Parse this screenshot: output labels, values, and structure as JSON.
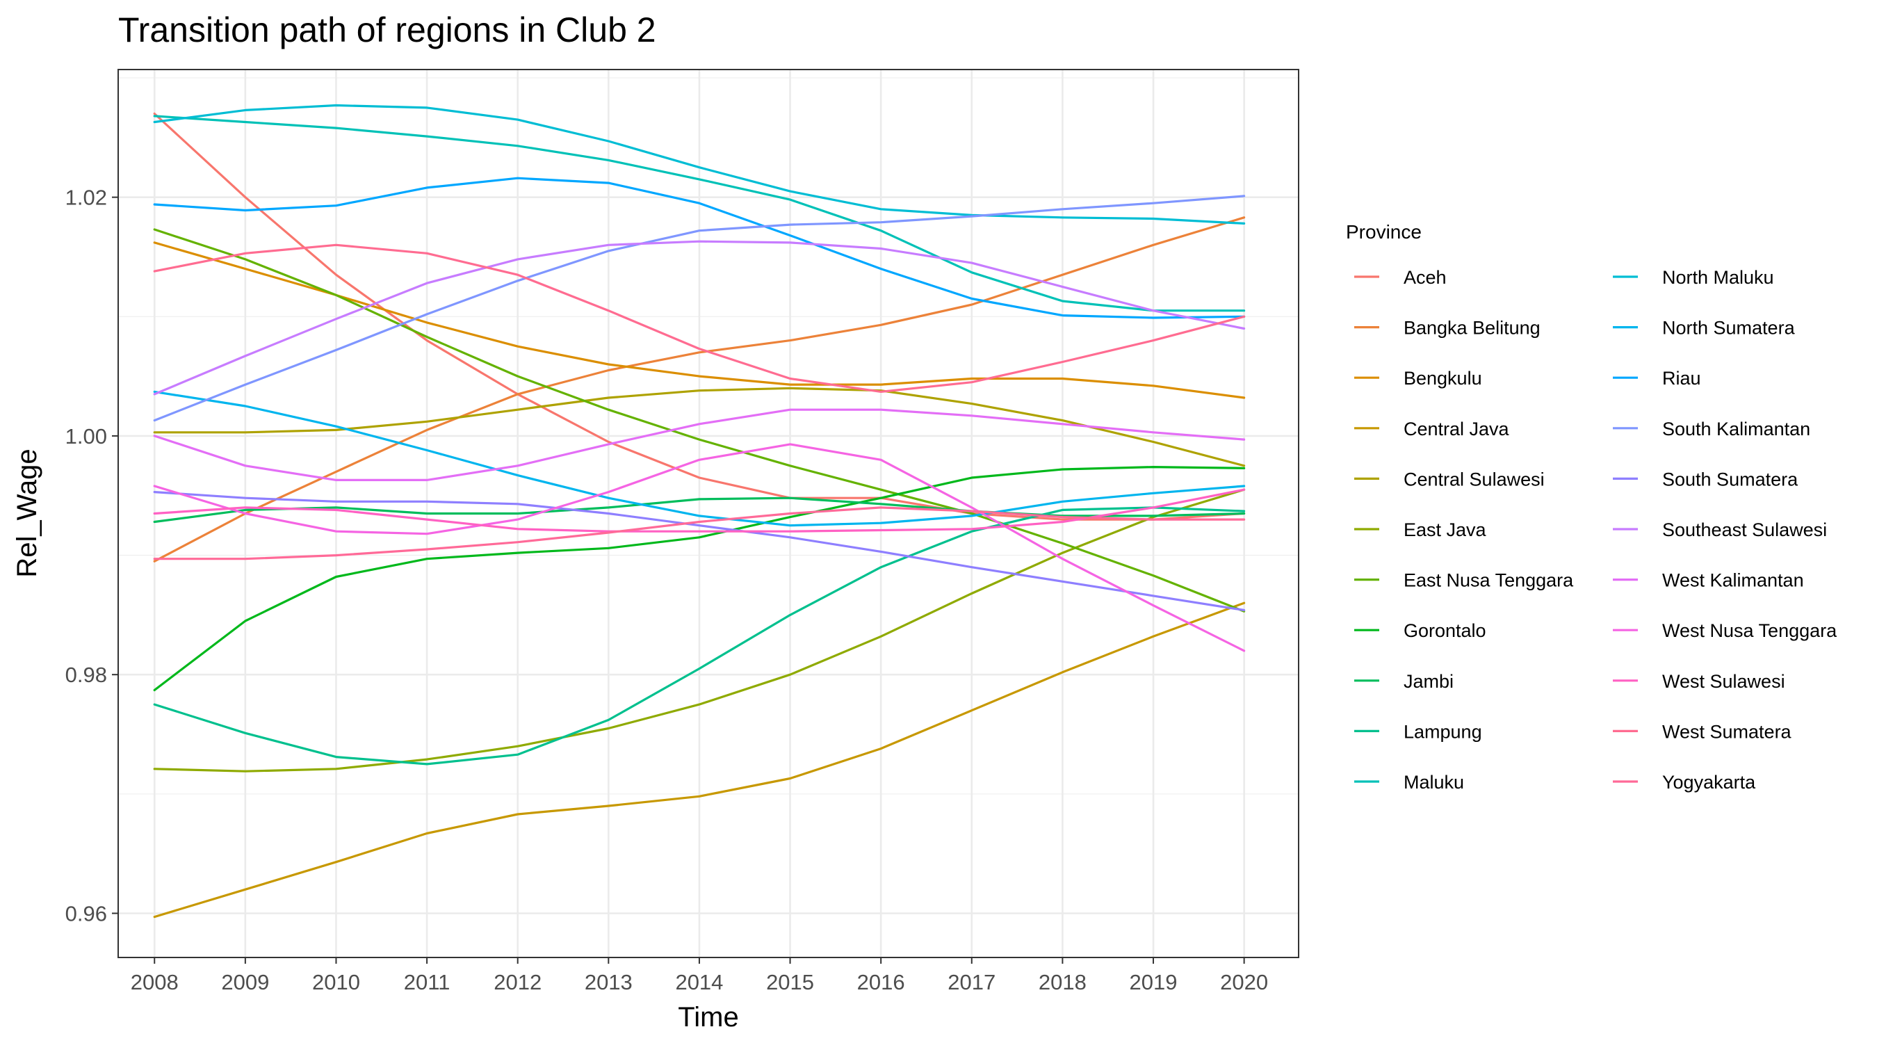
{
  "chart_data": {
    "type": "line",
    "title": "Transition path of regions in Club 2",
    "xlabel": "Time",
    "ylabel": "Rel_Wage",
    "x": [
      2008,
      2009,
      2010,
      2011,
      2012,
      2013,
      2014,
      2015,
      2016,
      2017,
      2018,
      2019,
      2020
    ],
    "xlim": [
      2007.6,
      2020.6
    ],
    "ylim": [
      0.9563,
      1.0307
    ],
    "y_ticks": [
      0.96,
      0.98,
      1.0,
      1.02
    ],
    "y_tick_labels": [
      "0.96",
      "0.98",
      "1.00",
      "1.02"
    ],
    "grid": true,
    "legend_title": "Province",
    "legend_position": "right",
    "series": [
      {
        "name": "Aceh",
        "color": "#F8766D",
        "values": [
          1.027,
          1.02,
          1.0135,
          1.008,
          1.0035,
          0.9995,
          0.9965,
          0.9948,
          0.9948,
          0.9935,
          0.993,
          0.993,
          0.9935
        ]
      },
      {
        "name": "Bangka Belitung",
        "color": "#EC8239",
        "values": [
          0.9895,
          0.9935,
          0.997,
          1.0005,
          1.0035,
          1.0055,
          1.007,
          1.008,
          1.0093,
          1.011,
          1.0135,
          1.016,
          1.0183
        ]
      },
      {
        "name": "Bengkulu",
        "color": "#DB8E00",
        "values": [
          1.0162,
          1.014,
          1.0118,
          1.0095,
          1.0075,
          1.006,
          1.005,
          1.0043,
          1.0043,
          1.0048,
          1.0048,
          1.0042,
          1.0032
        ]
      },
      {
        "name": "Central Java",
        "color": "#C79800",
        "values": [
          0.9597,
          0.962,
          0.9643,
          0.9667,
          0.9683,
          0.969,
          0.9698,
          0.9713,
          0.9738,
          0.977,
          0.9802,
          0.9832,
          0.986
        ]
      },
      {
        "name": "Central Sulawesi",
        "color": "#AEA200",
        "values": [
          1.0003,
          1.0003,
          1.0005,
          1.0012,
          1.0022,
          1.0032,
          1.0038,
          1.004,
          1.0038,
          1.0027,
          1.0013,
          0.9995,
          0.9975
        ]
      },
      {
        "name": "East Java",
        "color": "#8FAA00",
        "values": [
          0.9721,
          0.9719,
          0.9721,
          0.9729,
          0.974,
          0.9755,
          0.9775,
          0.98,
          0.9832,
          0.9868,
          0.9902,
          0.9932,
          0.9955
        ]
      },
      {
        "name": "East Nusa Tenggara",
        "color": "#64B200",
        "values": [
          1.0173,
          1.0148,
          1.0118,
          1.0083,
          1.005,
          1.0022,
          0.9997,
          0.9975,
          0.9955,
          0.9935,
          0.991,
          0.9883,
          0.9853
        ]
      },
      {
        "name": "Gorontalo",
        "color": "#00B81B",
        "values": [
          0.9787,
          0.9845,
          0.9882,
          0.9897,
          0.9902,
          0.9906,
          0.9915,
          0.9932,
          0.9948,
          0.9965,
          0.9972,
          0.9974,
          0.9973
        ]
      },
      {
        "name": "Jambi",
        "color": "#00BD5C",
        "values": [
          0.9928,
          0.9938,
          0.994,
          0.9935,
          0.9935,
          0.994,
          0.9947,
          0.9948,
          0.9943,
          0.9937,
          0.9933,
          0.9933,
          0.9935
        ]
      },
      {
        "name": "Lampung",
        "color": "#00C08E",
        "values": [
          0.9775,
          0.9751,
          0.9731,
          0.9725,
          0.9733,
          0.9762,
          0.9805,
          0.985,
          0.989,
          0.992,
          0.9938,
          0.994,
          0.9937
        ]
      },
      {
        "name": "Maluku",
        "color": "#00C1B7",
        "values": [
          1.0268,
          1.0263,
          1.0258,
          1.0251,
          1.0243,
          1.0231,
          1.0215,
          1.0198,
          1.0172,
          1.0137,
          1.0113,
          1.0105,
          1.0105
        ]
      },
      {
        "name": "North Maluku",
        "color": "#00BDD4",
        "values": [
          1.0263,
          1.0273,
          1.0277,
          1.0275,
          1.0265,
          1.0247,
          1.0225,
          1.0205,
          1.019,
          1.0185,
          1.0183,
          1.0182,
          1.0178
        ]
      },
      {
        "name": "North Sumatera",
        "color": "#00B5EE",
        "values": [
          1.0037,
          1.0025,
          1.0008,
          0.9988,
          0.9967,
          0.9948,
          0.9933,
          0.9925,
          0.9927,
          0.9933,
          0.9945,
          0.9952,
          0.9958
        ]
      },
      {
        "name": "Riau",
        "color": "#00A7FF",
        "values": [
          1.0194,
          1.0189,
          1.0193,
          1.0208,
          1.0216,
          1.0212,
          1.0195,
          1.0168,
          1.014,
          1.0115,
          1.0101,
          1.0099,
          1.01
        ]
      },
      {
        "name": "South Kalimantan",
        "color": "#7F96FF",
        "values": [
          1.0013,
          1.0043,
          1.0072,
          1.0102,
          1.013,
          1.0155,
          1.0172,
          1.0177,
          1.0179,
          1.0184,
          1.019,
          1.0195,
          1.0201
        ]
      },
      {
        "name": "South Sumatera",
        "color": "#8E7FFF",
        "values": [
          0.9953,
          0.9948,
          0.9945,
          0.9945,
          0.9943,
          0.9935,
          0.9925,
          0.9915,
          0.9903,
          0.989,
          0.9878,
          0.9866,
          0.9854
        ]
      },
      {
        "name": "Southeast Sulawesi",
        "color": "#C77CFF",
        "values": [
          1.0035,
          1.0067,
          1.0098,
          1.0128,
          1.0148,
          1.016,
          1.0163,
          1.0162,
          1.0157,
          1.0145,
          1.0125,
          1.0105,
          1.009
        ]
      },
      {
        "name": "West Kalimantan",
        "color": "#E36EF6",
        "values": [
          1.0,
          0.9975,
          0.9963,
          0.9963,
          0.9975,
          0.9993,
          1.001,
          1.0022,
          1.0022,
          1.0017,
          1.001,
          1.0003,
          0.9997
        ]
      },
      {
        "name": "West Nusa Tenggara",
        "color": "#F564E3",
        "values": [
          0.9958,
          0.9935,
          0.992,
          0.9918,
          0.993,
          0.9953,
          0.998,
          0.9993,
          0.998,
          0.994,
          0.9897,
          0.9858,
          0.982
        ]
      },
      {
        "name": "West Sulawesi",
        "color": "#FF61C3",
        "values": [
          0.9935,
          0.994,
          0.9938,
          0.993,
          0.9922,
          0.992,
          0.992,
          0.992,
          0.9921,
          0.9922,
          0.9928,
          0.994,
          0.9955
        ]
      },
      {
        "name": "West Sumatera",
        "color": "#FF6C91",
        "values": [
          1.0138,
          1.0153,
          1.016,
          1.0153,
          1.0135,
          1.0105,
          1.0073,
          1.0048,
          1.0037,
          1.0045,
          1.0062,
          1.008,
          1.01
        ]
      },
      {
        "name": "Yogyakarta",
        "color": "#FF6A98",
        "values": [
          0.9897,
          0.9897,
          0.99,
          0.9905,
          0.9911,
          0.9919,
          0.9928,
          0.9935,
          0.994,
          0.9937,
          0.9932,
          0.993,
          0.993
        ]
      }
    ]
  }
}
